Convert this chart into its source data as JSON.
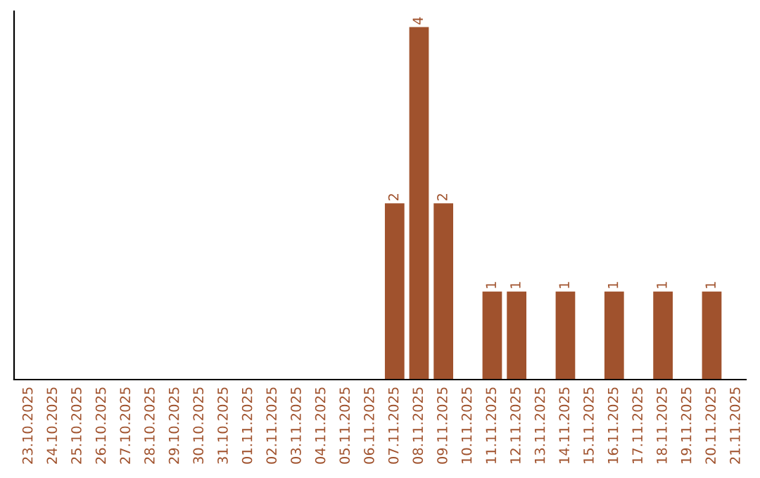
{
  "chart_data": {
    "type": "bar",
    "categories": [
      "23.10.2025",
      "24.10.2025",
      "25.10.2025",
      "26.10.2025",
      "27.10.2025",
      "28.10.2025",
      "29.10.2025",
      "30.10.2025",
      "31.10.2025",
      "01.11.2025",
      "02.11.2025",
      "03.11.2025",
      "04.11.2025",
      "05.11.2025",
      "06.11.2025",
      "07.11.2025",
      "08.11.2025",
      "09.11.2025",
      "10.11.2025",
      "11.11.2025",
      "12.11.2025",
      "13.11.2025",
      "14.11.2025",
      "15.11.2025",
      "16.11.2025",
      "17.11.2025",
      "18.11.2025",
      "19.11.2025",
      "20.11.2025",
      "21.11.2025"
    ],
    "values": [
      null,
      null,
      null,
      null,
      null,
      null,
      null,
      null,
      null,
      null,
      null,
      null,
      null,
      null,
      null,
      2,
      4,
      2,
      null,
      1,
      1,
      null,
      1,
      null,
      1,
      null,
      1,
      null,
      1,
      null
    ],
    "value_labels": [
      null,
      null,
      null,
      null,
      null,
      null,
      null,
      null,
      null,
      null,
      null,
      null,
      null,
      null,
      null,
      "2",
      "4",
      "2",
      null,
      "1",
      "1",
      null,
      "1",
      null,
      "1",
      null,
      "1",
      null,
      "1",
      null
    ],
    "color": "#a0522d",
    "tick_labels": "x",
    "grid": false,
    "legend": false
  }
}
